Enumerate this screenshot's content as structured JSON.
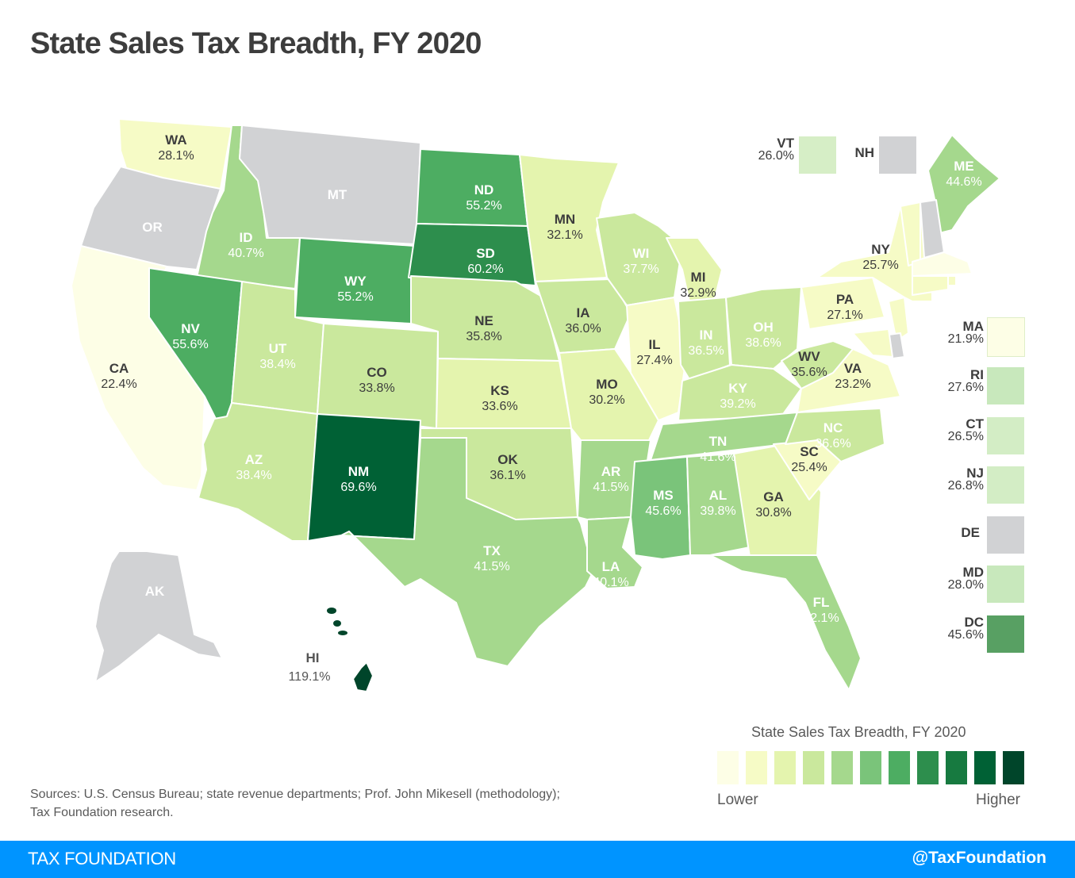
{
  "title": "State Sales Tax Breadth, FY 2020",
  "colors": {
    "no_tax": "#d1d2d4",
    "scale": [
      "#fdfee6",
      "#f6fbc6",
      "#e4f4ae",
      "#cae89d",
      "#a5d88d",
      "#7ac47a",
      "#4dad62",
      "#2d8e4d",
      "#177a40",
      "#006135",
      "#00452a"
    ]
  },
  "chart_data": {
    "type": "choropleth",
    "title": "State Sales Tax Breadth, FY 2020",
    "unit": "%",
    "states": [
      {
        "abbr": "WA",
        "value": 28.1
      },
      {
        "abbr": "OR",
        "value": null
      },
      {
        "abbr": "CA",
        "value": 22.4
      },
      {
        "abbr": "ID",
        "value": 40.7
      },
      {
        "abbr": "NV",
        "value": 55.6
      },
      {
        "abbr": "MT",
        "value": null
      },
      {
        "abbr": "WY",
        "value": 55.2
      },
      {
        "abbr": "UT",
        "value": 38.4
      },
      {
        "abbr": "AZ",
        "value": 38.4
      },
      {
        "abbr": "CO",
        "value": 33.8
      },
      {
        "abbr": "NM",
        "value": 69.6
      },
      {
        "abbr": "ND",
        "value": 55.2
      },
      {
        "abbr": "SD",
        "value": 60.2
      },
      {
        "abbr": "NE",
        "value": 35.8
      },
      {
        "abbr": "KS",
        "value": 33.6
      },
      {
        "abbr": "OK",
        "value": 36.1
      },
      {
        "abbr": "TX",
        "value": 41.5
      },
      {
        "abbr": "MN",
        "value": 32.1
      },
      {
        "abbr": "IA",
        "value": 36.0
      },
      {
        "abbr": "MO",
        "value": 30.2
      },
      {
        "abbr": "AR",
        "value": 41.5
      },
      {
        "abbr": "LA",
        "value": 40.1
      },
      {
        "abbr": "WI",
        "value": 37.7
      },
      {
        "abbr": "IL",
        "value": 27.4
      },
      {
        "abbr": "MI",
        "value": 32.9
      },
      {
        "abbr": "IN",
        "value": 36.5
      },
      {
        "abbr": "OH",
        "value": 38.6
      },
      {
        "abbr": "KY",
        "value": 39.2
      },
      {
        "abbr": "TN",
        "value": 41.6
      },
      {
        "abbr": "MS",
        "value": 45.6
      },
      {
        "abbr": "AL",
        "value": 39.8
      },
      {
        "abbr": "GA",
        "value": 30.8
      },
      {
        "abbr": "FL",
        "value": 42.1
      },
      {
        "abbr": "SC",
        "value": 25.4
      },
      {
        "abbr": "NC",
        "value": 36.6
      },
      {
        "abbr": "VA",
        "value": 23.2
      },
      {
        "abbr": "WV",
        "value": 35.6
      },
      {
        "abbr": "PA",
        "value": 27.1
      },
      {
        "abbr": "NY",
        "value": 25.7
      },
      {
        "abbr": "ME",
        "value": 44.6
      },
      {
        "abbr": "VT",
        "value": 26.0
      },
      {
        "abbr": "NH",
        "value": null
      },
      {
        "abbr": "MA",
        "value": 21.9
      },
      {
        "abbr": "RI",
        "value": 27.6
      },
      {
        "abbr": "CT",
        "value": 26.5
      },
      {
        "abbr": "NJ",
        "value": 26.8
      },
      {
        "abbr": "DE",
        "value": null
      },
      {
        "abbr": "MD",
        "value": 28.0
      },
      {
        "abbr": "DC",
        "value": 45.6
      },
      {
        "abbr": "AK",
        "value": null
      },
      {
        "abbr": "HI",
        "value": 119.1
      }
    ],
    "legend": {
      "title": "State Sales Tax Breadth, FY 2020",
      "low_label": "Lower",
      "high_label": "Higher",
      "placement": "bottom-right",
      "bins": 11
    }
  },
  "insets": [
    {
      "abbr": "VT",
      "value": "26.0%"
    },
    {
      "abbr": "NH",
      "value": ""
    },
    {
      "abbr": "MA",
      "value": "21.9%"
    },
    {
      "abbr": "RI",
      "value": "27.6%"
    },
    {
      "abbr": "CT",
      "value": "26.5%"
    },
    {
      "abbr": "NJ",
      "value": "26.8%"
    },
    {
      "abbr": "DE",
      "value": ""
    },
    {
      "abbr": "MD",
      "value": "28.0%"
    },
    {
      "abbr": "DC",
      "value": "45.6%"
    }
  ],
  "legend": {
    "title": "State Sales Tax Breadth, FY 2020",
    "low": "Lower",
    "high": "Higher"
  },
  "sources": "Sources: U.S. Census Bureau; state revenue departments; Prof. John Mikesell (methodology); Tax Foundation research.",
  "footer": {
    "left": "TAX FOUNDATION",
    "right": "@TaxFoundation"
  }
}
